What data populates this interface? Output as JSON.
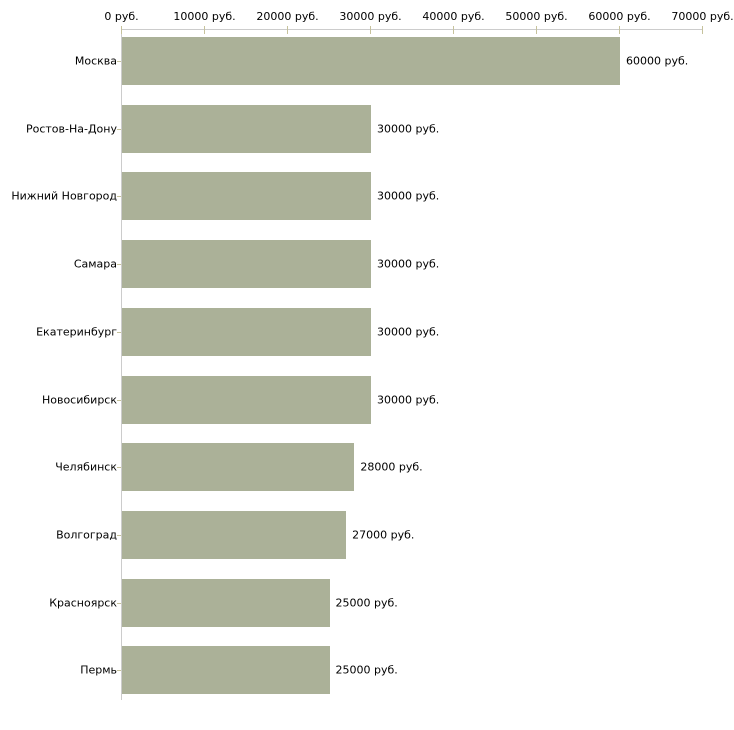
{
  "chart_data": {
    "type": "bar",
    "orientation": "horizontal",
    "title": "",
    "xlabel": "",
    "ylabel": "",
    "categories": [
      "Москва",
      "Ростов-На-Дону",
      "Нижний Новгород",
      "Самара",
      "Екатеринбург",
      "Новосибирск",
      "Челябинск",
      "Волгоград",
      "Красноярск",
      "Пермь"
    ],
    "values": [
      60000,
      30000,
      30000,
      30000,
      30000,
      30000,
      28000,
      27000,
      25000,
      25000
    ],
    "value_labels": [
      "60000 руб.",
      "30000 руб.",
      "30000 руб.",
      "30000 руб.",
      "30000 руб.",
      "30000 руб.",
      "28000 руб.",
      "27000 руб.",
      "25000 руб.",
      "25000 руб."
    ],
    "x_axis": {
      "unit": "руб.",
      "range": [
        0,
        70000
      ],
      "ticks": [
        0,
        10000,
        20000,
        30000,
        40000,
        50000,
        60000,
        70000
      ],
      "tick_labels": [
        "0 руб.",
        "10000 руб.",
        "20000 руб.",
        "30000 руб.",
        "40000 руб.",
        "50000 руб.",
        "60000 руб.",
        "70000 руб."
      ],
      "position": "top"
    },
    "grid": false,
    "legend": false,
    "colors": {
      "bar": "#abb198",
      "axis_line": "#cccccc",
      "tick_mark": "#c6c29c",
      "text": "#000000",
      "background": "#ffffff"
    }
  }
}
